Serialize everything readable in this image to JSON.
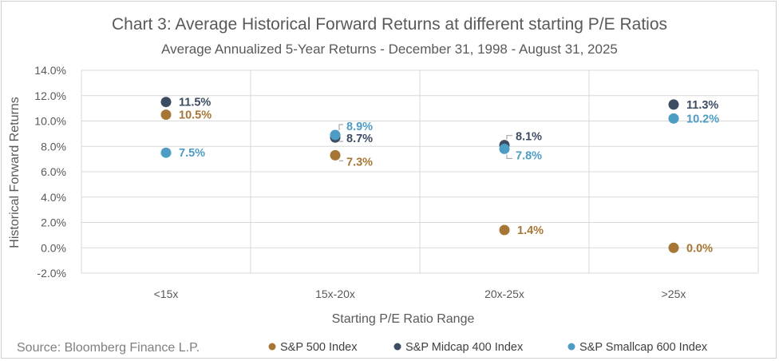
{
  "chart_data": {
    "type": "scatter",
    "title": "Chart 3: Average Historical Forward Returns at different starting P/E Ratios",
    "subtitle": "Average Annualized 5-Year Returns - December 31, 1998 - August 31, 2025",
    "xlabel": "Starting P/E Ratio Range",
    "ylabel": "Historical Forward Returns",
    "categories": [
      "<15x",
      "15x-20x",
      "20x-25x",
      ">25x"
    ],
    "ylim": [
      -2.0,
      14.0
    ],
    "yticks": [
      "-2.0%",
      "0.0%",
      "2.0%",
      "4.0%",
      "6.0%",
      "8.0%",
      "10.0%",
      "12.0%",
      "14.0%"
    ],
    "grid": true,
    "legend_position": "bottom",
    "series": [
      {
        "name": "S&P 500 Index",
        "color": "#a67636",
        "values": [
          10.5,
          7.3,
          1.4,
          0.0
        ],
        "labels": [
          "10.5%",
          "7.3%",
          "1.4%",
          "0.0%"
        ]
      },
      {
        "name": "S&P Midcap 400 Index",
        "color": "#3d4b63",
        "values": [
          11.5,
          8.7,
          8.1,
          11.3
        ],
        "labels": [
          "11.5%",
          "8.7%",
          "8.1%",
          "11.3%"
        ]
      },
      {
        "name": "S&P Smallcap 600 Index",
        "color": "#4d9cc4",
        "values": [
          7.5,
          8.9,
          7.8,
          10.2
        ],
        "labels": [
          "7.5%",
          "8.9%",
          "7.8%",
          "10.2%"
        ]
      }
    ],
    "source": "Source: Bloomberg Finance L.P."
  }
}
